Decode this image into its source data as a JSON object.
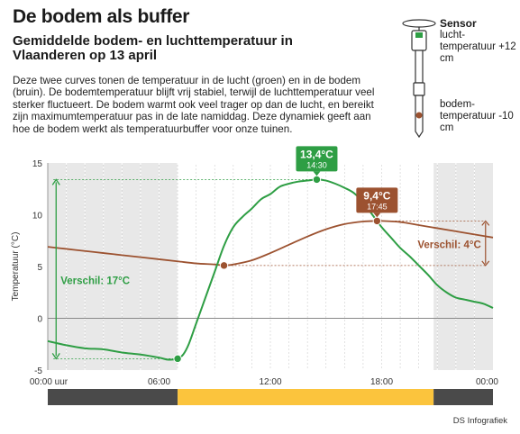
{
  "header": {
    "title": "De bodem als buffer",
    "subtitle": "Gemiddelde bodem- en luchttemperatuur in Vlaanderen op 13 april",
    "intro": "Deze twee curves tonen de temperatuur in de lucht (groen) en in de bodem (bruin). De bodemtemperatuur blijft vrij stabiel, terwijl de luchttemperatuur veel sterker fluctueert. De bodem warmt ook veel trager op dan de lucht, en bereikt zijn maximumtemperatuur pas in de late namiddag. Deze dynamiek geeft aan hoe de bodem werkt als temperatuurbuffer voor onze tuinen."
  },
  "sensor": {
    "title": "Sensor",
    "air_label": "lucht-temperatuur +12 cm",
    "soil_label": "bodem-temperatuur -10 cm"
  },
  "credit": "DS Infografiek",
  "colors": {
    "air": "#2e9e44",
    "soil": "#9c5230",
    "night_band": "#e8e8e8",
    "day_bar": "#fbc43d",
    "night_bar": "#4a4a4a"
  },
  "chart_data": {
    "type": "line",
    "ylabel": "Temperatuur (°C)",
    "ylim": [
      -5,
      15
    ],
    "yticks": [
      -5,
      0,
      5,
      10,
      15
    ],
    "xlim_hours": [
      0,
      24
    ],
    "xtick_labels": [
      "00:00 uur",
      "06:00",
      "12:00",
      "18:00",
      "00:00"
    ],
    "night_periods_hours": [
      [
        0,
        7.0
      ],
      [
        20.8,
        24
      ]
    ],
    "series": [
      {
        "key": "air",
        "x_hours": [
          0,
          1,
          2,
          3,
          4,
          5,
          6,
          6.5,
          7,
          7.3,
          7.6,
          8,
          8.5,
          9,
          9.5,
          10,
          10.5,
          11,
          11.5,
          12,
          12.5,
          13,
          13.5,
          14,
          14.5,
          15,
          15.5,
          16,
          16.5,
          17,
          17.5,
          18,
          18.5,
          19,
          19.5,
          20,
          20.5,
          21,
          21.5,
          22,
          22.5,
          23,
          23.5,
          24
        ],
        "values": [
          -2.2,
          -2.6,
          -2.9,
          -3.0,
          -3.3,
          -3.5,
          -3.8,
          -4.0,
          -3.9,
          -3.5,
          -2.5,
          -0.5,
          2.0,
          4.5,
          7.0,
          8.8,
          9.8,
          10.6,
          11.5,
          12.0,
          12.7,
          13.0,
          13.2,
          13.3,
          13.4,
          13.3,
          13.0,
          12.6,
          12.1,
          11.2,
          10.0,
          8.8,
          7.8,
          6.8,
          6.0,
          5.1,
          4.2,
          3.2,
          2.5,
          2.0,
          1.8,
          1.6,
          1.4,
          1.0
        ]
      },
      {
        "key": "soil",
        "x_hours": [
          0,
          1,
          2,
          3,
          4,
          5,
          6,
          7,
          8,
          9,
          9.5,
          10,
          11,
          12,
          13,
          14,
          15,
          16,
          17,
          17.75,
          18,
          19,
          20,
          21,
          22,
          23,
          24
        ],
        "values": [
          6.9,
          6.7,
          6.5,
          6.3,
          6.1,
          5.9,
          5.7,
          5.5,
          5.3,
          5.2,
          5.1,
          5.2,
          5.6,
          6.3,
          7.1,
          7.9,
          8.6,
          9.1,
          9.35,
          9.4,
          9.4,
          9.3,
          9.0,
          8.7,
          8.4,
          8.1,
          7.8
        ]
      }
    ],
    "markers": [
      {
        "series": "air",
        "hour": 7.0,
        "value": -3.9
      },
      {
        "series": "air",
        "hour": 14.5,
        "value": 13.4
      },
      {
        "series": "soil",
        "hour": 9.5,
        "value": 5.1
      },
      {
        "series": "soil",
        "hour": 17.75,
        "value": 9.4
      }
    ],
    "annotations": {
      "air_max": {
        "value": "13,4°C",
        "time": "14:30"
      },
      "soil_max": {
        "value": "9,4°C",
        "time": "17:45"
      },
      "air_range": "Verschil: 17°C",
      "soil_range": "Verschil: 4°C"
    }
  }
}
